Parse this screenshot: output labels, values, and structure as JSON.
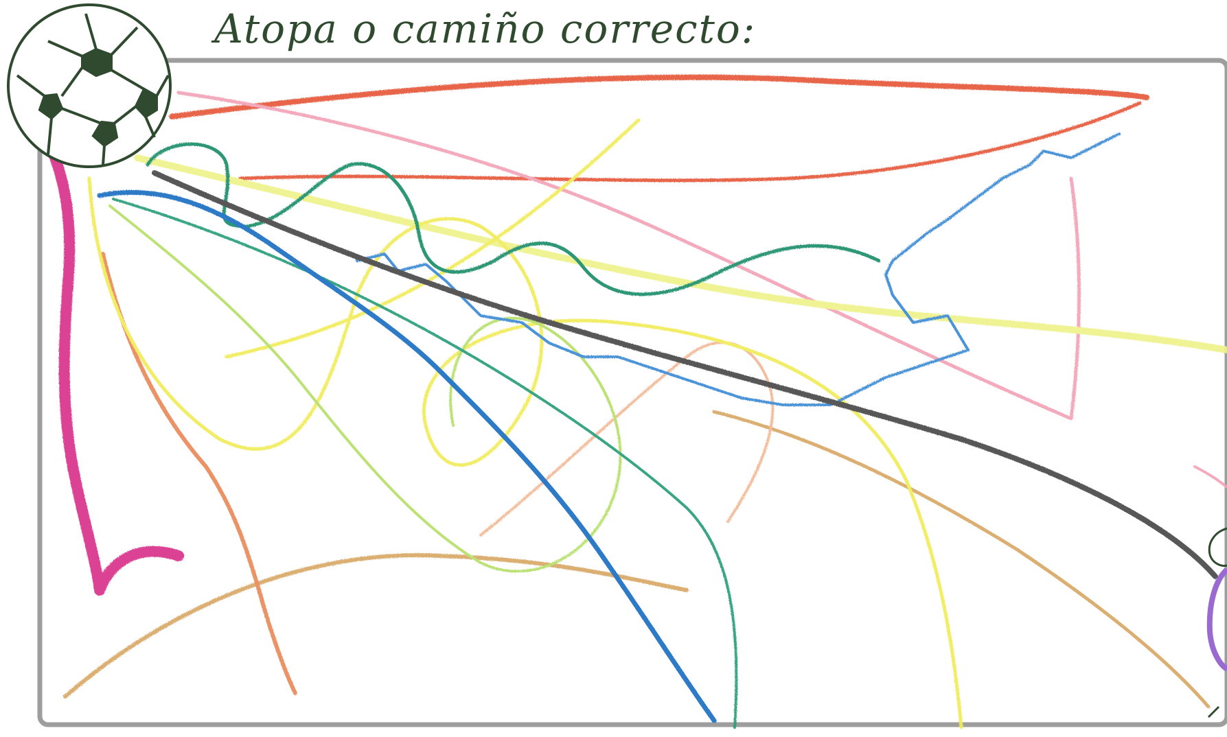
{
  "worksheet": {
    "title": "Atopa o camiño correcto:",
    "start_icon": "soccer-ball-icon",
    "goal_icon": "goal-figure-icon"
  },
  "colors": {
    "frame": "#9e9e9e",
    "ink": "#2f4a2f",
    "crayon_red": "#e8593a",
    "crayon_pink": "#f2a3b8",
    "crayon_magenta": "#d9328c",
    "crayon_yellow": "#f0ec5a",
    "crayon_light_green": "#c8e86a",
    "crayon_green": "#1f8f6a",
    "crayon_blue": "#1f6fc2",
    "crayon_black": "#4a4a4a",
    "crayon_orange": "#e88a5a",
    "crayon_tan": "#d9a866",
    "crayon_purple": "#9a6ad0"
  }
}
